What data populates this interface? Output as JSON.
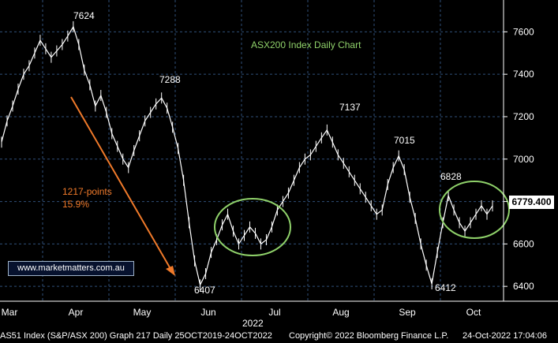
{
  "chart_data": {
    "type": "line",
    "title": "ASX200 Index Daily Chart",
    "xlabel": "2022",
    "ylabel": "",
    "ylim": [
      6330,
      7750
    ],
    "grid": true,
    "months": [
      "Mar",
      "Apr",
      "May",
      "Jun",
      "Jul",
      "Aug",
      "Sep",
      "Oct"
    ],
    "y_ticks": [
      6400,
      6600,
      6800,
      7000,
      7200,
      7400,
      7600
    ],
    "last_value": "6779.400",
    "series": [
      {
        "values": [
          7080,
          7180,
          7250,
          7330,
          7400,
          7440,
          7500,
          7560,
          7520,
          7480,
          7510,
          7540,
          7580,
          7624,
          7540,
          7420,
          7350,
          7250,
          7300,
          7220,
          7120,
          7060,
          7000,
          6960,
          7040,
          7110,
          7180,
          7220,
          7260,
          7288,
          7240,
          7150,
          7050,
          6900,
          6700,
          6520,
          6407,
          6460,
          6560,
          6620,
          6690,
          6740,
          6660,
          6600,
          6640,
          6680,
          6650,
          6600,
          6620,
          6680,
          6760,
          6800,
          6840,
          6900,
          6960,
          7000,
          7020,
          7060,
          7100,
          7137,
          7080,
          7020,
          6980,
          6940,
          6900,
          6860,
          6820,
          6780,
          6740,
          6760,
          6880,
          6960,
          7015,
          6950,
          6820,
          6720,
          6600,
          6500,
          6412,
          6560,
          6700,
          6828,
          6760,
          6700,
          6660,
          6700,
          6740,
          6780,
          6740,
          6779.4
        ]
      }
    ],
    "annotations": {
      "apr_high": "7624",
      "may_high": "7288",
      "jun_low": "6407",
      "aug_high": "7137",
      "sep_high": "7015",
      "sep_low": "6412",
      "oct_high": "6828",
      "points_line1": "1217-points",
      "points_line2": "15.9%"
    }
  },
  "website": "www.marketmatters.com.au",
  "footer": {
    "source": "AS51 Index (S&P/ASX 200) Graph 217  Daily 25OCT2019-24OCT2022",
    "copyright": "Copyright© 2022 Bloomberg Finance L.P.",
    "timestamp": "24-Oct-2022 17:04:06"
  },
  "colors": {
    "background": "#000000",
    "price_line": "#ffffff",
    "grid": "#2f4f7a",
    "title": "#8fd16a",
    "circles": "#8fd16a",
    "arrow": "#f07a2a",
    "annotation_orange": "#f07a2a"
  }
}
